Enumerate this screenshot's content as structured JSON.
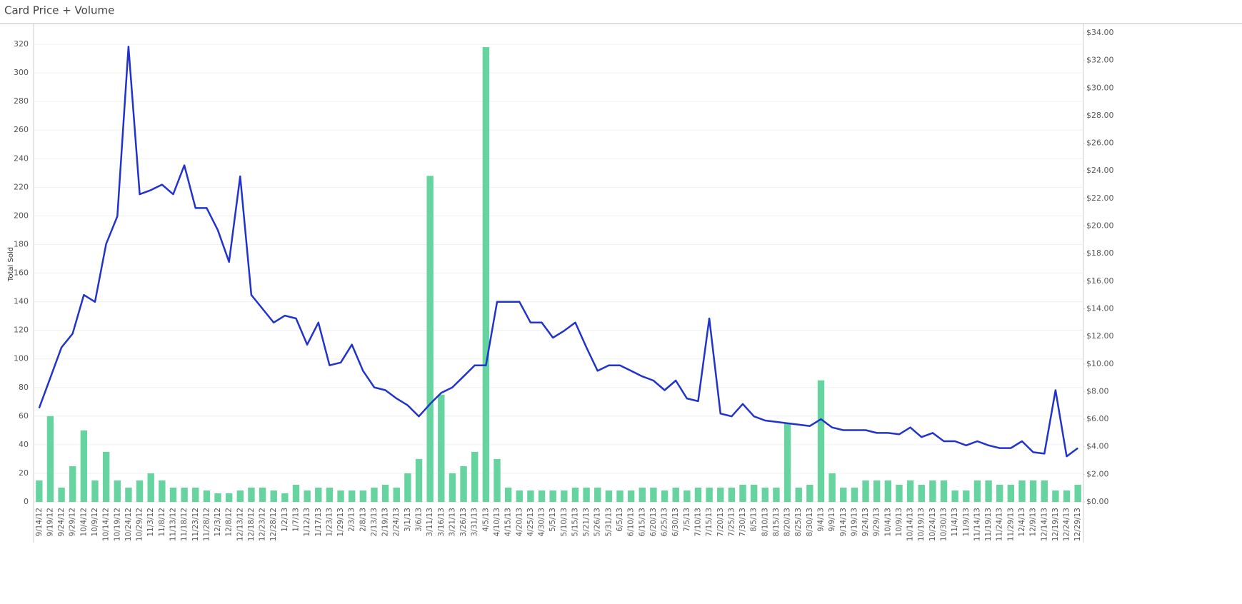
{
  "chart_data": {
    "type": "bar-line",
    "title": "Card Price + Volume",
    "y_label": "Total Sold",
    "categories": [
      "9/14/12",
      "9/19/12",
      "9/24/12",
      "9/29/12",
      "10/4/12",
      "10/9/12",
      "10/14/12",
      "10/19/12",
      "10/24/12",
      "10/29/12",
      "11/3/12",
      "11/8/12",
      "11/13/12",
      "11/18/12",
      "11/23/12",
      "11/28/12",
      "12/3/12",
      "12/8/12",
      "12/13/12",
      "12/18/12",
      "12/23/12",
      "12/28/12",
      "1/2/13",
      "1/7/13",
      "1/12/13",
      "1/17/13",
      "1/23/13",
      "1/29/13",
      "2/3/13",
      "2/8/13",
      "2/13/13",
      "2/19/13",
      "2/24/13",
      "3/1/13",
      "3/6/13",
      "3/11/13",
      "3/16/13",
      "3/21/13",
      "3/26/13",
      "3/31/13",
      "4/5/13",
      "4/10/13",
      "4/15/13",
      "4/20/13",
      "4/25/13",
      "4/30/13",
      "5/5/13",
      "5/10/13",
      "5/15/13",
      "5/21/13",
      "5/26/13",
      "5/31/13",
      "6/5/13",
      "6/10/13",
      "6/15/13",
      "6/20/13",
      "6/25/13",
      "6/30/13",
      "7/5/13",
      "7/10/13",
      "7/15/13",
      "7/20/13",
      "7/25/13",
      "7/30/13",
      "8/5/13",
      "8/10/13",
      "8/15/13",
      "8/20/13",
      "8/25/13",
      "8/30/13",
      "9/4/13",
      "9/9/13",
      "9/14/13",
      "9/19/13",
      "9/24/13",
      "9/29/13",
      "10/4/13",
      "10/9/13",
      "10/14/13",
      "10/19/13",
      "10/24/13",
      "10/30/13",
      "11/4/13",
      "11/9/13",
      "11/14/13",
      "11/19/13",
      "11/24/13",
      "11/29/13",
      "12/4/13",
      "12/9/13",
      "12/14/13",
      "12/19/13",
      "12/24/13",
      "12/29/13"
    ],
    "series": [
      {
        "name": "Total Sold",
        "kind": "bar",
        "color": "#66d49e",
        "values": [
          15,
          60,
          10,
          25,
          50,
          15,
          35,
          15,
          10,
          15,
          20,
          15,
          10,
          10,
          10,
          8,
          6,
          6,
          8,
          10,
          10,
          8,
          6,
          12,
          8,
          10,
          10,
          8,
          8,
          8,
          10,
          12,
          10,
          20,
          30,
          228,
          75,
          20,
          25,
          35,
          318,
          30,
          10,
          8,
          8,
          8,
          8,
          8,
          10,
          10,
          10,
          8,
          8,
          8,
          10,
          10,
          8,
          10,
          8,
          10,
          10,
          10,
          10,
          12,
          12,
          10,
          10,
          55,
          10,
          12,
          85,
          20,
          10,
          10,
          15,
          15,
          15,
          12,
          15,
          12,
          15,
          15,
          8,
          8,
          15,
          15,
          12,
          12,
          15,
          15,
          15,
          8,
          8,
          12
        ]
      },
      {
        "name": "Price",
        "kind": "line",
        "axis": "y2",
        "color": "#2233cc",
        "values": [
          6.8,
          9.0,
          11.2,
          12.2,
          15.0,
          14.5,
          18.7,
          20.7,
          33.0,
          22.3,
          22.6,
          23.0,
          22.3,
          24.4,
          21.3,
          21.3,
          19.7,
          17.4,
          23.6,
          15.0,
          14.0,
          13.0,
          13.5,
          13.3,
          11.4,
          13.0,
          9.9,
          10.1,
          11.4,
          9.5,
          8.3,
          8.1,
          7.5,
          7.0,
          6.2,
          7.1,
          7.9,
          8.3,
          9.1,
          9.9,
          9.9,
          14.5,
          14.5,
          14.5,
          13.0,
          13.0,
          11.9,
          12.4,
          13.0,
          11.2,
          9.5,
          9.9,
          9.9,
          9.5,
          9.1,
          8.8,
          8.1,
          8.8,
          7.5,
          7.3,
          13.3,
          6.4,
          6.2,
          7.1,
          6.2,
          5.9,
          5.8,
          5.7,
          5.6,
          5.5,
          6.0,
          5.4,
          5.2,
          5.2,
          5.2,
          5.0,
          5.0,
          4.9,
          5.4,
          4.7,
          5.0,
          4.4,
          4.4,
          4.1,
          4.4,
          4.1,
          3.9,
          3.9,
          4.4,
          3.6,
          3.5,
          8.1,
          3.3,
          3.9
        ]
      }
    ],
    "ylim": [
      0,
      328
    ],
    "yticks": [
      0,
      20,
      40,
      60,
      80,
      100,
      120,
      140,
      160,
      180,
      200,
      220,
      240,
      260,
      280,
      300,
      320
    ],
    "y2lim": [
      0,
      34
    ],
    "y2ticks": [
      {
        "value": 0,
        "label": "$0.00"
      },
      {
        "value": 2,
        "label": "$2.00"
      },
      {
        "value": 4,
        "label": "$4.00"
      },
      {
        "value": 6,
        "label": "$6.00"
      },
      {
        "value": 8,
        "label": "$8.00"
      },
      {
        "value": 10,
        "label": "$10.00"
      },
      {
        "value": 12,
        "label": "$12.00"
      },
      {
        "value": 14,
        "label": "$14.00"
      },
      {
        "value": 16,
        "label": "$16.00"
      },
      {
        "value": 18,
        "label": "$18.00"
      },
      {
        "value": 20,
        "label": "$20.00"
      },
      {
        "value": 22,
        "label": "$22.00"
      },
      {
        "value": 24,
        "label": "$24.00"
      },
      {
        "value": 26,
        "label": "$26.00"
      },
      {
        "value": 28,
        "label": "$28.00"
      },
      {
        "value": 30,
        "label": "$30.00"
      },
      {
        "value": 32,
        "label": "$32.00"
      },
      {
        "value": 34,
        "label": "$34.00"
      }
    ],
    "grid": true
  }
}
